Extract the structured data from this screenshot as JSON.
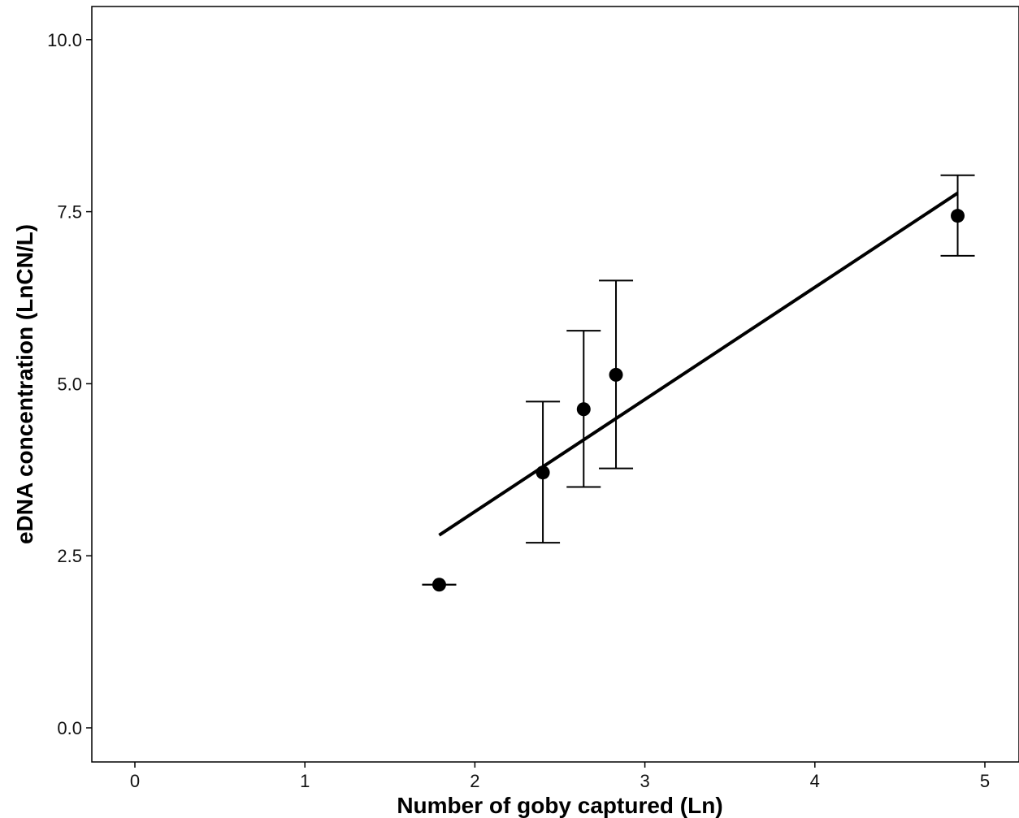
{
  "chart_data": {
    "type": "scatter",
    "xlabel": "Number of goby captured (Ln)",
    "ylabel": "eDNA concentration (LnCN/L)",
    "xlim": [
      -0.25,
      5.2
    ],
    "ylim": [
      -0.5,
      10.5
    ],
    "x_ticks": [
      0,
      1,
      2,
      3,
      4,
      5
    ],
    "x_tick_labels": [
      "0",
      "1",
      "2",
      "3",
      "4",
      "5"
    ],
    "y_ticks": [
      0.0,
      2.5,
      5.0,
      7.5,
      10.0
    ],
    "y_tick_labels": [
      "0.0",
      "2.5",
      "5.0",
      "7.5",
      "10.0"
    ],
    "grid": false,
    "points": [
      {
        "x": 1.79,
        "y": 2.08,
        "ymin": 2.08,
        "ymax": 2.08
      },
      {
        "x": 2.4,
        "y": 3.71,
        "ymin": 2.69,
        "ymax": 4.74
      },
      {
        "x": 2.64,
        "y": 4.63,
        "ymin": 3.5,
        "ymax": 5.77
      },
      {
        "x": 2.83,
        "y": 5.13,
        "ymin": 3.77,
        "ymax": 6.5
      },
      {
        "x": 4.84,
        "y": 7.44,
        "ymin": 6.86,
        "ymax": 8.03
      }
    ],
    "fit_line": {
      "x": [
        1.79,
        4.84
      ],
      "y": [
        2.8,
        7.77
      ]
    },
    "colors": {
      "points": "#000000",
      "line": "#000000",
      "axis": "#000000"
    }
  }
}
